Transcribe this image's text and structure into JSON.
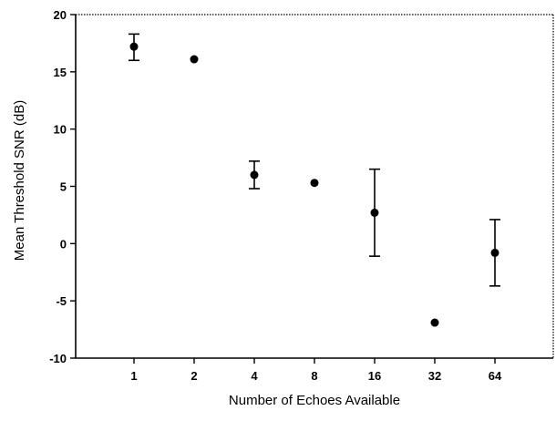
{
  "chart_data": {
    "type": "scatter",
    "title": "",
    "xlabel": "Number of Echoes Available",
    "ylabel": "Mean Threshold SNR (dB)",
    "categories": [
      "1",
      "2",
      "4",
      "8",
      "16",
      "32",
      "64"
    ],
    "ylim": [
      -10,
      20
    ],
    "yticks": [
      "20",
      "15",
      "10",
      "5",
      "0",
      "-5",
      "-10"
    ],
    "grid": false,
    "legend": "none",
    "series": [
      {
        "values": [
          17.2,
          16.1,
          6.0,
          5.3,
          2.7,
          -6.9,
          -0.8
        ],
        "error_low": [
          16.0,
          null,
          4.8,
          null,
          -1.1,
          null,
          -3.7
        ],
        "error_high": [
          18.3,
          null,
          7.2,
          null,
          6.5,
          null,
          2.1
        ]
      }
    ],
    "colors": {
      "marker": "#000000",
      "axis": "#000000",
      "background": "#ffffff"
    }
  }
}
